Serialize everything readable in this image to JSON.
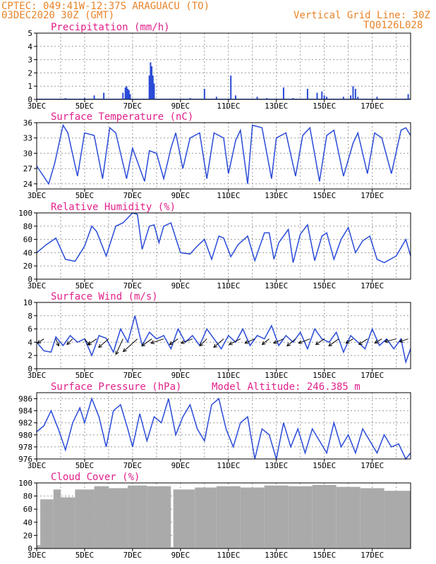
{
  "header": {
    "line1": "CPTEC:  049:41W-12:37S  ARAGUACU (TO)",
    "line2": "03DEC2020 30Z (GMT)",
    "grid_note": "Vertical Grid Line: 30Z",
    "model": "TQ0126L028"
  },
  "colors": {
    "header": "#e8842a",
    "title": "#e0208a",
    "series": "#2a4bd7",
    "cloud": "#aaaaaa"
  },
  "chart_data": [
    {
      "type": "bar",
      "title": "Precipitation (mm/h)",
      "x_tick_labels": [
        "3DEC",
        "5DEC",
        "7DEC",
        "9DEC",
        "11DEC",
        "13DEC",
        "15DEC",
        "17DEC"
      ],
      "x_range_days": [
        3,
        18.6
      ],
      "ylim": [
        0,
        5
      ],
      "y_ticks": [
        0,
        1,
        2,
        3,
        4,
        5
      ],
      "x": [
        3.5,
        4.2,
        4.5,
        5.0,
        5.4,
        5.8,
        6.6,
        6.7,
        6.75,
        6.8,
        6.85,
        6.9,
        7.7,
        7.75,
        7.8,
        7.85,
        7.9,
        9.4,
        10.0,
        10.5,
        11.1,
        11.3,
        12.2,
        12.6,
        13.3,
        13.7,
        14.3,
        14.7,
        14.9,
        15.0,
        15.1,
        15.8,
        16.1,
        16.2,
        16.3,
        16.4,
        17.2,
        18.5
      ],
      "values": [
        0.05,
        0.1,
        0.05,
        0.1,
        0.3,
        0.5,
        0.5,
        0.9,
        1.0,
        0.8,
        0.7,
        0.4,
        1.8,
        2.8,
        2.5,
        1.8,
        1.2,
        0.1,
        0.8,
        0.2,
        1.8,
        0.3,
        0.2,
        0.1,
        0.9,
        0.1,
        0.8,
        0.5,
        0.6,
        0.3,
        0.2,
        0.2,
        0.3,
        1.0,
        0.8,
        0.2,
        0.2,
        0.4
      ]
    },
    {
      "type": "line",
      "title": "Surface Temperature (nC)",
      "x_tick_labels": [
        "3DEC",
        "5DEC",
        "7DEC",
        "9DEC",
        "11DEC",
        "13DEC",
        "15DEC",
        "17DEC"
      ],
      "ylim": [
        23,
        36
      ],
      "y_ticks": [
        24,
        27,
        30,
        33,
        36
      ],
      "x": [
        3.0,
        3.5,
        3.75,
        4.1,
        4.3,
        4.7,
        5.0,
        5.4,
        5.75,
        6.05,
        6.3,
        6.75,
        7.0,
        7.5,
        7.7,
        8.0,
        8.3,
        8.6,
        8.8,
        9.1,
        9.4,
        9.8,
        10.1,
        10.4,
        10.8,
        11.0,
        11.3,
        11.5,
        11.8,
        12.0,
        12.4,
        12.8,
        13.0,
        13.4,
        13.8,
        14.1,
        14.4,
        14.8,
        15.1,
        15.4,
        15.8,
        16.2,
        16.4,
        16.8,
        17.1,
        17.4,
        17.8,
        18.2,
        18.4,
        18.6
      ],
      "values": [
        27.5,
        24.0,
        28.0,
        35.5,
        34.0,
        25.5,
        34.0,
        33.5,
        25.0,
        35.0,
        34.0,
        25.0,
        31.0,
        24.5,
        30.5,
        30.0,
        25.0,
        31.0,
        34.0,
        27.0,
        33.0,
        34.0,
        25.0,
        34.0,
        33.0,
        26.0,
        32.5,
        34.5,
        24.0,
        35.5,
        35.0,
        25.0,
        33.0,
        34.0,
        25.5,
        33.5,
        35.0,
        24.5,
        33.5,
        34.5,
        25.5,
        32.0,
        34.0,
        26.0,
        34.0,
        33.0,
        26.0,
        34.5,
        35.0,
        33.5
      ]
    },
    {
      "type": "line",
      "title": "Relative Humidity (%)",
      "x_tick_labels": [
        "3DEC",
        "5DEC",
        "7DEC",
        "9DEC",
        "11DEC",
        "13DEC",
        "15DEC",
        "17DEC"
      ],
      "ylim": [
        0,
        100
      ],
      "y_ticks": [
        0,
        20,
        40,
        60,
        80,
        100
      ],
      "x": [
        3.0,
        3.4,
        3.8,
        4.2,
        4.6,
        5.0,
        5.3,
        5.5,
        5.9,
        6.3,
        6.6,
        7.0,
        7.2,
        7.4,
        7.7,
        7.9,
        8.1,
        8.3,
        8.6,
        9.0,
        9.4,
        9.7,
        10.0,
        10.3,
        10.6,
        10.8,
        11.1,
        11.4,
        11.8,
        12.1,
        12.5,
        12.7,
        12.9,
        13.1,
        13.5,
        13.7,
        14.0,
        14.3,
        14.6,
        14.9,
        15.1,
        15.4,
        15.7,
        16.0,
        16.3,
        16.6,
        16.9,
        17.2,
        17.5,
        18.0,
        18.4,
        18.6
      ],
      "values": [
        40,
        52,
        62,
        30,
        27,
        50,
        80,
        72,
        35,
        80,
        85,
        100,
        98,
        45,
        80,
        82,
        55,
        80,
        85,
        40,
        38,
        50,
        60,
        30,
        65,
        62,
        34,
        52,
        65,
        28,
        70,
        70,
        30,
        55,
        75,
        25,
        68,
        82,
        28,
        65,
        70,
        30,
        60,
        78,
        40,
        58,
        65,
        30,
        25,
        35,
        60,
        35
      ]
    },
    {
      "type": "line",
      "title": "Surface Wind (m/s)",
      "x_tick_labels": [
        "3DEC",
        "5DEC",
        "7DEC",
        "9DEC",
        "11DEC",
        "13DEC",
        "15DEC",
        "17DEC"
      ],
      "ylim": [
        0,
        10
      ],
      "y_ticks": [
        0,
        2,
        4,
        6,
        8,
        10
      ],
      "x": [
        3.0,
        3.3,
        3.6,
        3.8,
        4.1,
        4.4,
        4.7,
        5.0,
        5.3,
        5.6,
        5.9,
        6.2,
        6.5,
        6.8,
        7.1,
        7.4,
        7.7,
        8.0,
        8.3,
        8.6,
        8.9,
        9.2,
        9.5,
        9.8,
        10.1,
        10.4,
        10.7,
        11.0,
        11.3,
        11.6,
        11.9,
        12.2,
        12.5,
        12.8,
        13.1,
        13.4,
        13.7,
        14.0,
        14.3,
        14.6,
        14.9,
        15.2,
        15.5,
        15.8,
        16.1,
        16.4,
        16.7,
        17.0,
        17.3,
        17.6,
        17.9,
        18.2,
        18.4,
        18.6
      ],
      "values": [
        4.0,
        2.7,
        2.5,
        4.8,
        3.5,
        5.0,
        4.0,
        4.5,
        2.0,
        5.0,
        4.6,
        2.5,
        6.0,
        4.0,
        8.0,
        3.5,
        5.5,
        4.5,
        5.0,
        3.0,
        6.0,
        4.0,
        5.0,
        3.5,
        6.0,
        4.5,
        3.0,
        5.0,
        4.0,
        6.0,
        3.5,
        5.0,
        4.5,
        6.5,
        3.5,
        5.0,
        4.0,
        5.5,
        3.0,
        6.0,
        4.5,
        4.0,
        5.5,
        2.5,
        5.0,
        4.0,
        3.0,
        6.0,
        3.5,
        4.5,
        3.0,
        4.5,
        1.0,
        3.0
      ],
      "arrows": [
        {
          "x": 3.3,
          "dx": -9,
          "dy": 6
        },
        {
          "x": 3.8,
          "dx": 4,
          "dy": 10
        },
        {
          "x": 4.5,
          "dx": -8,
          "dy": 8
        },
        {
          "x": 5.0,
          "dx": 7,
          "dy": 9
        },
        {
          "x": 5.5,
          "dx": -12,
          "dy": 8
        },
        {
          "x": 6.0,
          "dx": -14,
          "dy": 12
        },
        {
          "x": 6.6,
          "dx": -10,
          "dy": 22
        },
        {
          "x": 7.2,
          "dx": -20,
          "dy": 18
        },
        {
          "x": 7.8,
          "dx": -14,
          "dy": 10
        },
        {
          "x": 8.3,
          "dx": -18,
          "dy": 6
        },
        {
          "x": 8.9,
          "dx": -12,
          "dy": 8
        },
        {
          "x": 9.5,
          "dx": -16,
          "dy": 6
        },
        {
          "x": 10.1,
          "dx": -10,
          "dy": 10
        },
        {
          "x": 10.8,
          "dx": -14,
          "dy": 12
        },
        {
          "x": 11.5,
          "dx": -16,
          "dy": 8
        },
        {
          "x": 12.1,
          "dx": -14,
          "dy": 6
        },
        {
          "x": 12.7,
          "dx": -10,
          "dy": 8
        },
        {
          "x": 13.3,
          "dx": -14,
          "dy": 6
        },
        {
          "x": 13.8,
          "dx": -12,
          "dy": 10
        },
        {
          "x": 14.4,
          "dx": -16,
          "dy": 6
        },
        {
          "x": 15.0,
          "dx": -12,
          "dy": 8
        },
        {
          "x": 15.6,
          "dx": -14,
          "dy": 10
        },
        {
          "x": 16.2,
          "dx": -10,
          "dy": 6
        },
        {
          "x": 16.8,
          "dx": -12,
          "dy": 8
        },
        {
          "x": 17.4,
          "dx": -10,
          "dy": 6
        },
        {
          "x": 18.0,
          "dx": -16,
          "dy": 4
        },
        {
          "x": 18.5,
          "dx": -12,
          "dy": 4
        }
      ]
    },
    {
      "type": "line",
      "title": "Surface Pressure (hPa)",
      "subtitle": "Model Altitude: 246.385 m",
      "x_tick_labels": [
        "3DEC",
        "5DEC",
        "7DEC",
        "9DEC",
        "11DEC",
        "13DEC",
        "15DEC",
        "17DEC"
      ],
      "ylim": [
        976,
        987
      ],
      "y_ticks": [
        976,
        978,
        980,
        982,
        984,
        986
      ],
      "x": [
        3.0,
        3.3,
        3.6,
        3.9,
        4.2,
        4.5,
        4.8,
        5.0,
        5.3,
        5.6,
        5.9,
        6.2,
        6.5,
        6.8,
        7.0,
        7.3,
        7.6,
        7.9,
        8.2,
        8.5,
        8.8,
        9.1,
        9.4,
        9.7,
        10.0,
        10.3,
        10.6,
        10.9,
        11.2,
        11.5,
        11.8,
        12.1,
        12.4,
        12.7,
        13.0,
        13.3,
        13.6,
        13.9,
        14.2,
        14.5,
        14.8,
        15.1,
        15.4,
        15.7,
        16.0,
        16.3,
        16.6,
        16.9,
        17.2,
        17.5,
        17.8,
        18.1,
        18.4,
        18.6
      ],
      "values": [
        980.5,
        981.5,
        984,
        981,
        977.5,
        982,
        984.5,
        982,
        986,
        983,
        978,
        984,
        985,
        981,
        978,
        983.5,
        979,
        983,
        982,
        986,
        980,
        983,
        985,
        981,
        979,
        985,
        986,
        981,
        978,
        982,
        983,
        976,
        981,
        980,
        976,
        982,
        978,
        981,
        977,
        981,
        979,
        977,
        982,
        978,
        980,
        977,
        981,
        979,
        977,
        980,
        978,
        978.5,
        976,
        977
      ]
    },
    {
      "type": "bar",
      "title": "Cloud Cover (%)",
      "x_tick_labels": [
        "3DEC",
        "5DEC",
        "7DEC",
        "9DEC",
        "11DEC",
        "13DEC",
        "15DEC",
        "17DEC"
      ],
      "ylim": [
        0,
        100
      ],
      "y_ticks": [
        0,
        20,
        40,
        60,
        80,
        100
      ],
      "segments": [
        {
          "from": 3.0,
          "to": 3.15,
          "value": 5
        },
        {
          "from": 3.15,
          "to": 3.7,
          "value": 75
        },
        {
          "from": 3.7,
          "to": 4.0,
          "value": 90
        },
        {
          "from": 4.0,
          "to": 4.6,
          "value": 78
        },
        {
          "from": 4.6,
          "to": 5.4,
          "value": 90
        },
        {
          "from": 5.4,
          "to": 6.0,
          "value": 95
        },
        {
          "from": 6.0,
          "to": 6.8,
          "value": 92
        },
        {
          "from": 6.8,
          "to": 7.6,
          "value": 96
        },
        {
          "from": 7.6,
          "to": 8.6,
          "value": 95
        },
        {
          "from": 8.6,
          "to": 8.7,
          "value": 2
        },
        {
          "from": 8.7,
          "to": 9.6,
          "value": 90
        },
        {
          "from": 9.6,
          "to": 10.5,
          "value": 93
        },
        {
          "from": 10.5,
          "to": 11.5,
          "value": 95
        },
        {
          "from": 11.5,
          "to": 12.5,
          "value": 93
        },
        {
          "from": 12.5,
          "to": 13.5,
          "value": 96
        },
        {
          "from": 13.5,
          "to": 14.5,
          "value": 95
        },
        {
          "from": 14.5,
          "to": 15.5,
          "value": 97
        },
        {
          "from": 15.5,
          "to": 16.5,
          "value": 94
        },
        {
          "from": 16.5,
          "to": 17.5,
          "value": 92
        },
        {
          "from": 17.5,
          "to": 18.6,
          "value": 88
        }
      ]
    }
  ]
}
